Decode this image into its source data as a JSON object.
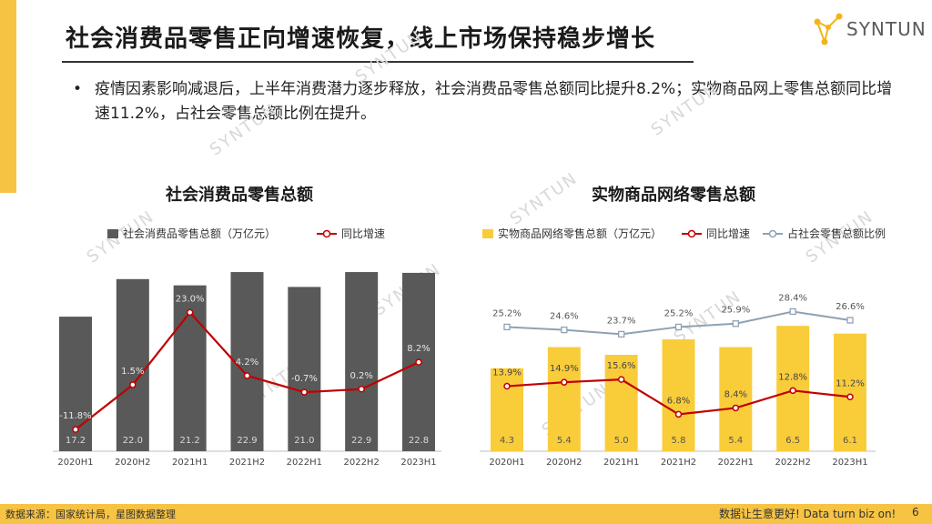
{
  "header": {
    "title": "社会消费品零售正向增速恢复，线上市场保持稳步增长",
    "logo_text": "SYNTUN"
  },
  "bullet": {
    "dot": "•",
    "text": "疫情因素影响减退后，上半年消费潜力逐步释放，社会消费品零售总额同比提升8.2%；实物商品网上零售总额同比增速11.2%，占社会零售总额比例在提升。"
  },
  "watermark": "SYNTUN",
  "colors": {
    "accent": "#f6c343",
    "bar_dark": "#595959",
    "bar_yellow": "#f9cc3a",
    "growth_line": "#c00000",
    "share_line": "#8ea2b4"
  },
  "chart_data": [
    {
      "type": "bar",
      "title": "社会消费品零售总额",
      "categories": [
        "2020H1",
        "2020H2",
        "2021H1",
        "2021H2",
        "2022H1",
        "2022H2",
        "2023H1"
      ],
      "series": [
        {
          "name": "社会消费品零售总额（万亿元）",
          "type": "bar",
          "values": [
            17.2,
            22.0,
            21.2,
            22.9,
            21.0,
            22.9,
            22.8
          ],
          "labels": [
            "17.2",
            "22.0",
            "21.2",
            "22.9",
            "21.0",
            "22.9",
            "22.8"
          ]
        },
        {
          "name": "同比增速",
          "type": "line",
          "values": [
            -11.8,
            1.5,
            23.0,
            4.2,
            -0.7,
            0.2,
            8.2
          ],
          "labels": [
            "-11.8%",
            "1.5%",
            "23.0%",
            "4.2%",
            "-0.7%",
            "0.2%",
            "8.2%"
          ]
        }
      ],
      "legend": "top"
    },
    {
      "type": "bar",
      "title": "实物商品网络零售总额",
      "categories": [
        "2020H1",
        "2020H2",
        "2021H1",
        "2021H2",
        "2022H1",
        "2022H2",
        "2023H1"
      ],
      "series": [
        {
          "name": "实物商品网络零售总额（万亿元）",
          "type": "bar",
          "values": [
            4.3,
            5.4,
            5.0,
            5.8,
            5.4,
            6.5,
            6.1
          ],
          "labels": [
            "4.3",
            "5.4",
            "5.0",
            "5.8",
            "5.4",
            "6.5",
            "6.1"
          ]
        },
        {
          "name": "同比增速",
          "type": "line",
          "values": [
            13.9,
            14.9,
            15.6,
            6.8,
            8.4,
            12.8,
            11.2
          ],
          "labels": [
            "13.9%",
            "14.9%",
            "15.6%",
            "6.8%",
            "8.4%",
            "12.8%",
            "11.2%"
          ]
        },
        {
          "name": "占社会零售总额比例",
          "type": "line",
          "values": [
            25.2,
            24.6,
            23.7,
            25.2,
            25.9,
            28.4,
            26.6
          ],
          "labels": [
            "25.2%",
            "24.6%",
            "23.7%",
            "25.2%",
            "25.9%",
            "28.4%",
            "26.6%"
          ]
        }
      ],
      "legend": "top"
    }
  ],
  "footer": {
    "source": "数据来源：国家统计局，星图数据整理",
    "slogan": "数据让生意更好! Data turn biz on!",
    "page_number": "6"
  }
}
